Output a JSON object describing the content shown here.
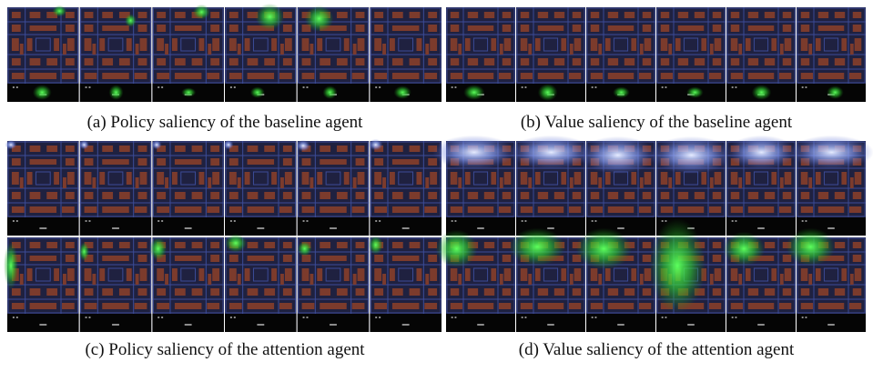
{
  "figure": {
    "panels": [
      {
        "caption": "(a) Policy saliency of the baseline agent"
      },
      {
        "caption": "(b) Value saliency of the baseline agent"
      },
      {
        "caption": "(c) Policy saliency of the attention agent"
      },
      {
        "caption": "(d) Value saliency of the attention agent"
      }
    ]
  }
}
